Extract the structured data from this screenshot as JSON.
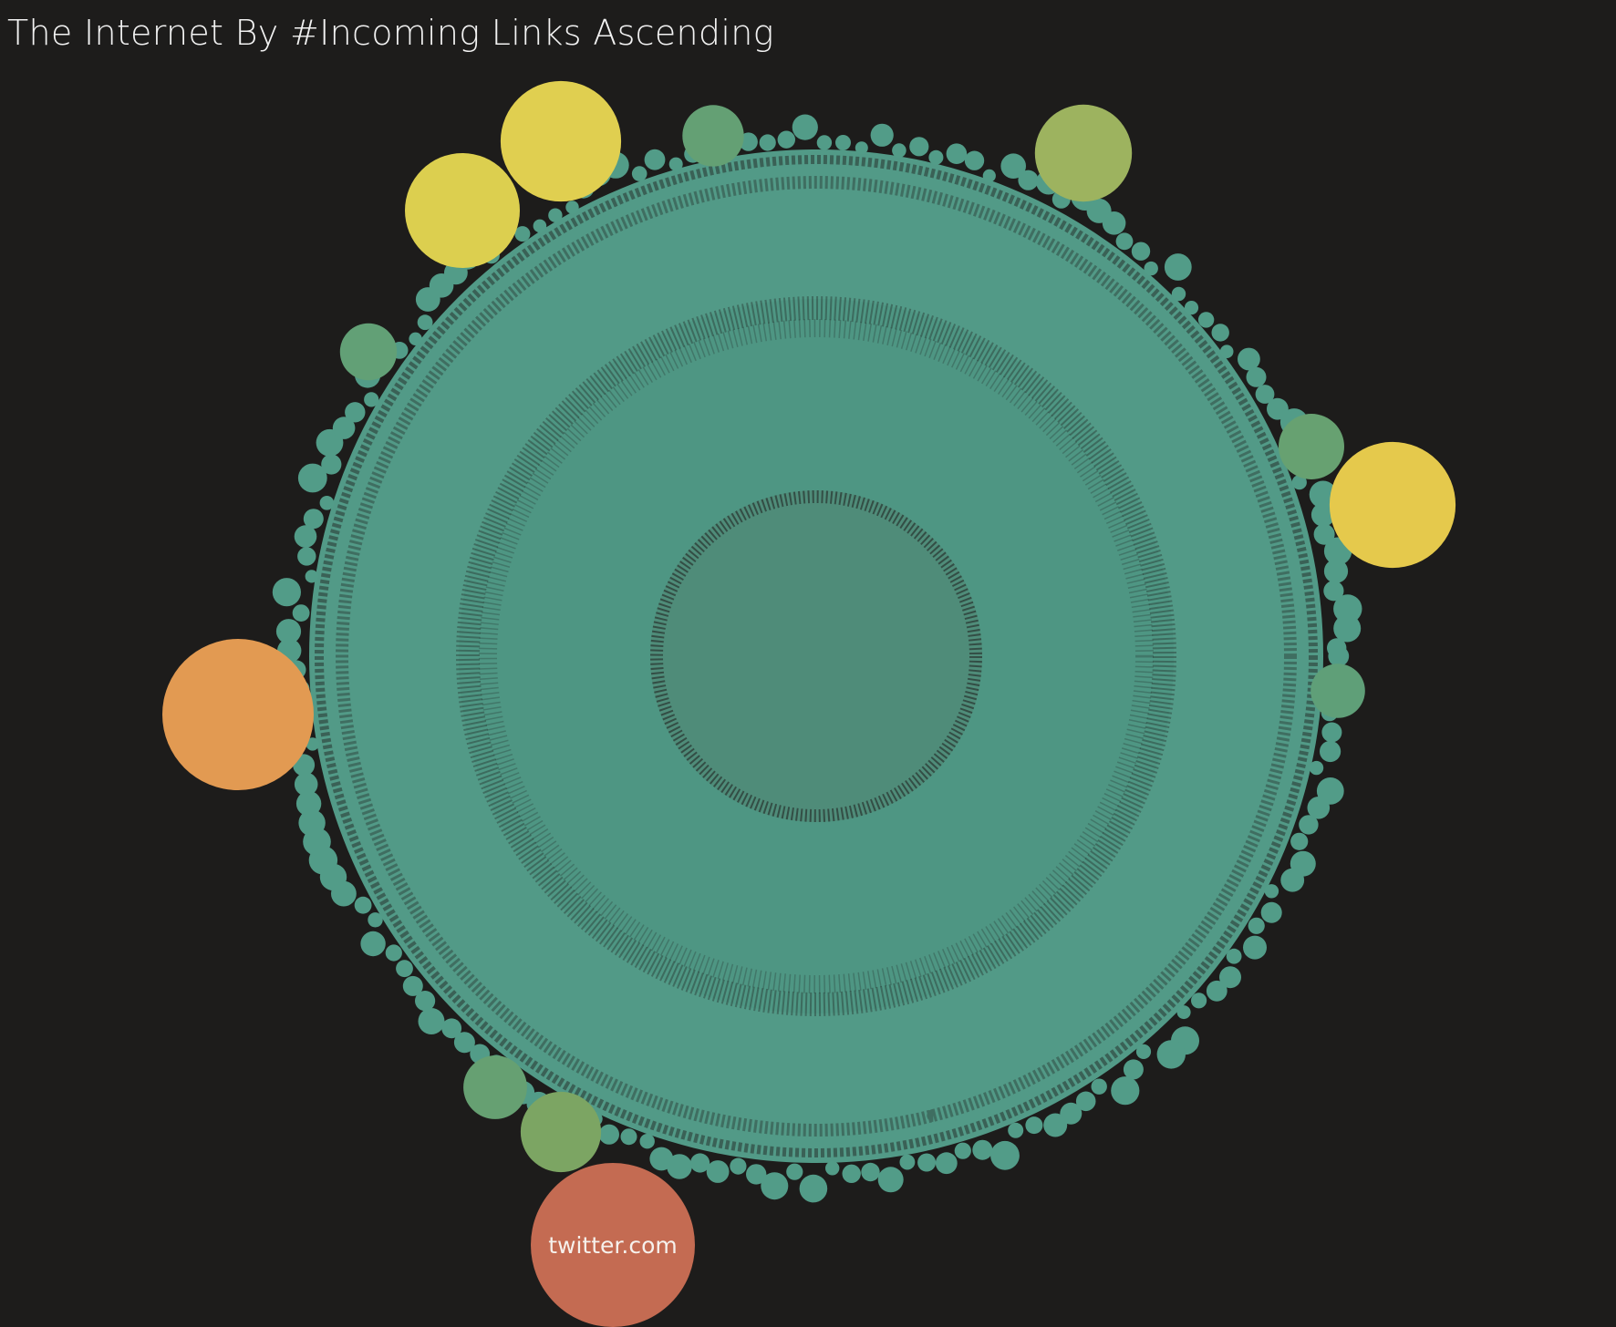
{
  "chart_data": {
    "type": "bubble",
    "title": "The Internet By #Incoming Links Ascending",
    "size_measure": "#Incoming Links",
    "sort": "ascending",
    "legend": "none",
    "grid": false,
    "color_scale": [
      "#529c88",
      "#5b9c78",
      "#94b060",
      "#e3cf4f",
      "#e29a52",
      "#c46b52"
    ],
    "background_color": "#1d1c1b",
    "highlighted_sites": [
      {
        "label": "twitter.com",
        "relative_size": 1.0,
        "color": "#c46b52"
      },
      {
        "label": "",
        "relative_size": 0.85,
        "color": "#e29a52"
      },
      {
        "label": "",
        "relative_size": 0.59,
        "color": "#e5c94c"
      },
      {
        "label": "",
        "relative_size": 0.54,
        "color": "#e0cf50"
      },
      {
        "label": "",
        "relative_size": 0.49,
        "color": "#dccf4f"
      },
      {
        "label": "",
        "relative_size": 0.35,
        "color": "#9db35f"
      },
      {
        "label": "",
        "relative_size": 0.24,
        "color": "#7ca563"
      },
      {
        "label": "",
        "relative_size": 0.16,
        "color": "#67a171"
      },
      {
        "label": "",
        "relative_size": 0.15,
        "color": "#66a072"
      },
      {
        "label": "",
        "relative_size": 0.14,
        "color": "#64a074"
      },
      {
        "label": "",
        "relative_size": 0.12,
        "color": "#62a076"
      },
      {
        "label": "",
        "relative_size": 0.11,
        "color": "#5f9f78"
      }
    ]
  }
}
